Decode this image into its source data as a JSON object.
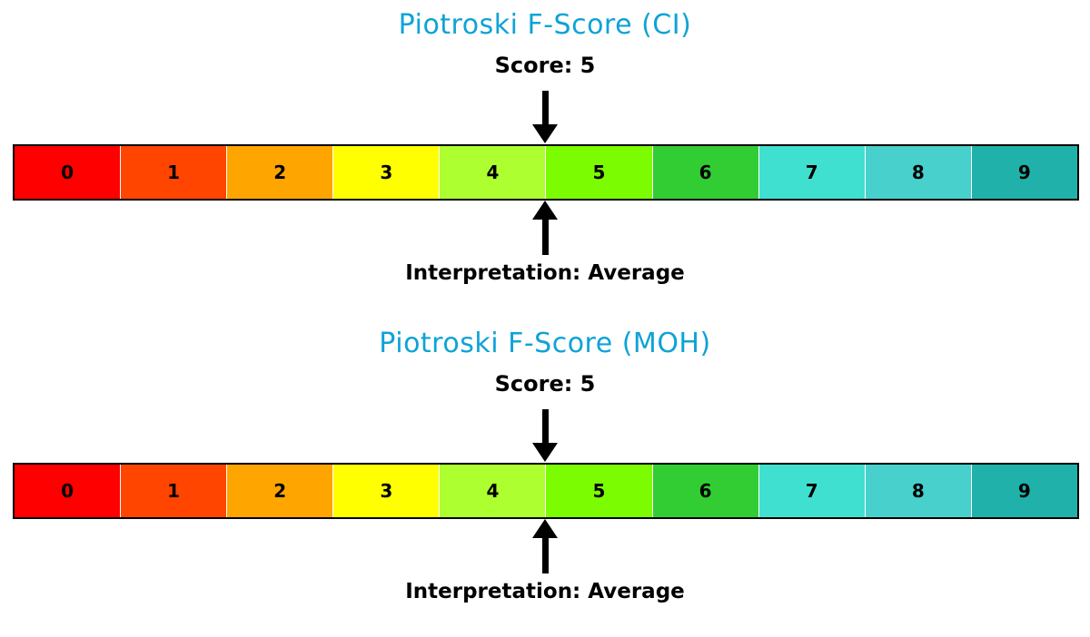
{
  "style": {
    "title_color": "#0EA3D6",
    "arrow_color": "#000000",
    "bar_border_color": "#000000"
  },
  "chart_data": [
    {
      "type": "heatmap",
      "subtype": "score-gauge-colorbar",
      "title": "Piotroski F-Score (CI)",
      "score": 5,
      "score_label": "Score: 5",
      "interpretation": "Average",
      "interpretation_label": "Interpretation: Average",
      "scale_min": 0,
      "scale_max": 9,
      "marker_value": 5,
      "categories": [
        "0",
        "1",
        "2",
        "3",
        "4",
        "5",
        "6",
        "7",
        "8",
        "9"
      ],
      "colors": [
        "#FF0000",
        "#FF4500",
        "#FFA500",
        "#FFFF00",
        "#ADFF2F",
        "#7CFC00",
        "#32CD32",
        "#40E0D0",
        "#48D1CC",
        "#20B2AA"
      ],
      "legend_position": "none",
      "grid": false
    },
    {
      "type": "heatmap",
      "subtype": "score-gauge-colorbar",
      "title": "Piotroski F-Score (MOH)",
      "score": 5,
      "score_label": "Score: 5",
      "interpretation": "Average",
      "interpretation_label": "Interpretation: Average",
      "scale_min": 0,
      "scale_max": 9,
      "marker_value": 5,
      "categories": [
        "0",
        "1",
        "2",
        "3",
        "4",
        "5",
        "6",
        "7",
        "8",
        "9"
      ],
      "colors": [
        "#FF0000",
        "#FF4500",
        "#FFA500",
        "#FFFF00",
        "#ADFF2F",
        "#7CFC00",
        "#32CD32",
        "#40E0D0",
        "#48D1CC",
        "#20B2AA"
      ],
      "legend_position": "none",
      "grid": false
    }
  ],
  "charts": [
    {
      "title": "Piotroski F-Score (CI)",
      "score_label": "Score: 5",
      "interpretation_label": "Interpretation: Average",
      "segments": [
        {
          "label": "0",
          "color": "#FF0000"
        },
        {
          "label": "1",
          "color": "#FF4500"
        },
        {
          "label": "2",
          "color": "#FFA500"
        },
        {
          "label": "3",
          "color": "#FFFF00"
        },
        {
          "label": "4",
          "color": "#ADFF2F"
        },
        {
          "label": "5",
          "color": "#7CFC00"
        },
        {
          "label": "6",
          "color": "#32CD32"
        },
        {
          "label": "7",
          "color": "#40E0D0"
        },
        {
          "label": "8",
          "color": "#48D1CC"
        },
        {
          "label": "9",
          "color": "#20B2AA"
        }
      ]
    },
    {
      "title": "Piotroski F-Score (MOH)",
      "score_label": "Score: 5",
      "interpretation_label": "Interpretation: Average",
      "segments": [
        {
          "label": "0",
          "color": "#FF0000"
        },
        {
          "label": "1",
          "color": "#FF4500"
        },
        {
          "label": "2",
          "color": "#FFA500"
        },
        {
          "label": "3",
          "color": "#FFFF00"
        },
        {
          "label": "4",
          "color": "#ADFF2F"
        },
        {
          "label": "5",
          "color": "#7CFC00"
        },
        {
          "label": "6",
          "color": "#32CD32"
        },
        {
          "label": "7",
          "color": "#40E0D0"
        },
        {
          "label": "8",
          "color": "#48D1CC"
        },
        {
          "label": "9",
          "color": "#20B2AA"
        }
      ]
    }
  ]
}
